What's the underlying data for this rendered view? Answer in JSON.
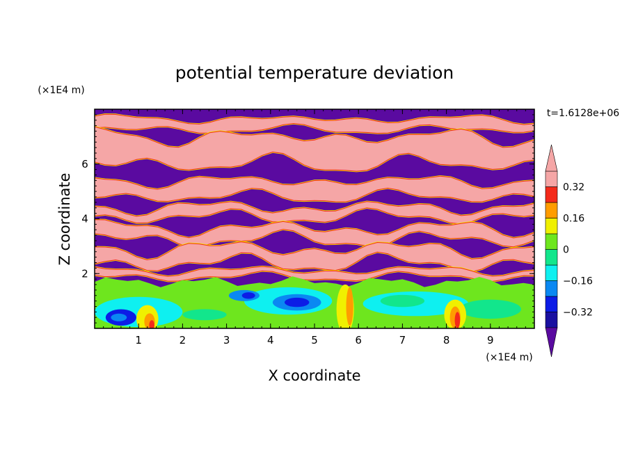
{
  "chart_data": {
    "type": "heatmap",
    "title": "potential temperature deviation",
    "time_label": "t=1.6128e+06",
    "xlabel": "X coordinate",
    "ylabel": "Z coordinate",
    "x_unit": "(×1E4 m)",
    "y_unit": "(×1E4 m)",
    "xlim": [
      0,
      10
    ],
    "ylim": [
      0,
      8
    ],
    "x_ticks": [
      "1",
      "2",
      "3",
      "4",
      "5",
      "6",
      "7",
      "8",
      "9"
    ],
    "y_ticks": [
      "2",
      "4",
      "6"
    ],
    "colorbar": {
      "levels": [
        -0.4,
        -0.32,
        -0.24,
        -0.16,
        -0.08,
        0,
        0.08,
        0.16,
        0.24,
        0.32,
        0.4
      ],
      "colors": [
        "#5a0aa0",
        "#1a10a0",
        "#0c1ce6",
        "#0a88f2",
        "#0ef0f0",
        "#12e68c",
        "#6ee61e",
        "#f0f000",
        "#ff9c00",
        "#f42a1a",
        "#f5a6a6"
      ],
      "tick_labels": [
        "0.32",
        "0.16",
        "0",
        "−0.16",
        "−0.32"
      ],
      "tick_values": [
        0.32,
        0.16,
        0,
        -0.16,
        -0.32
      ]
    },
    "field_description": {
      "upper_layers": "alternating bands near +0.4 and -0.4",
      "lower_layer": "mixed layer values between -0.3 and 0.3 with eddies"
    }
  }
}
